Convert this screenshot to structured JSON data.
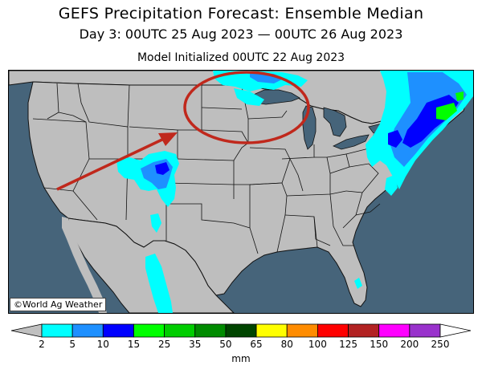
{
  "title": "GEFS Precipitation Forecast: Ensemble Median",
  "subtitle": "Day 3: 00UTC 25 Aug 2023 — 00UTC 26 Aug 2023",
  "init_line": "Model Initialized 00UTC 22 Aug 2023",
  "credit": "©World Ag Weather",
  "legend": {
    "units": "mm",
    "ticks": [
      "2",
      "5",
      "10",
      "15",
      "25",
      "35",
      "50",
      "65",
      "80",
      "100",
      "125",
      "150",
      "200",
      "250"
    ],
    "colors": [
      "#00ffff",
      "#1e90ff",
      "#0000ff",
      "#00ff00",
      "#00cd00",
      "#008b00",
      "#004500",
      "#ffff00",
      "#ff8c00",
      "#ff0000",
      "#b22222",
      "#ff00ff",
      "#9932cc"
    ],
    "below_color": "#c0c0c0",
    "above_color": "#ffffff"
  },
  "map_colors": {
    "water": "#46647a",
    "land": "#bebebe",
    "lakes": "#46647a"
  },
  "annotations": {
    "circle_color": "#c0281c",
    "arrow_color": "#c0281c"
  }
}
